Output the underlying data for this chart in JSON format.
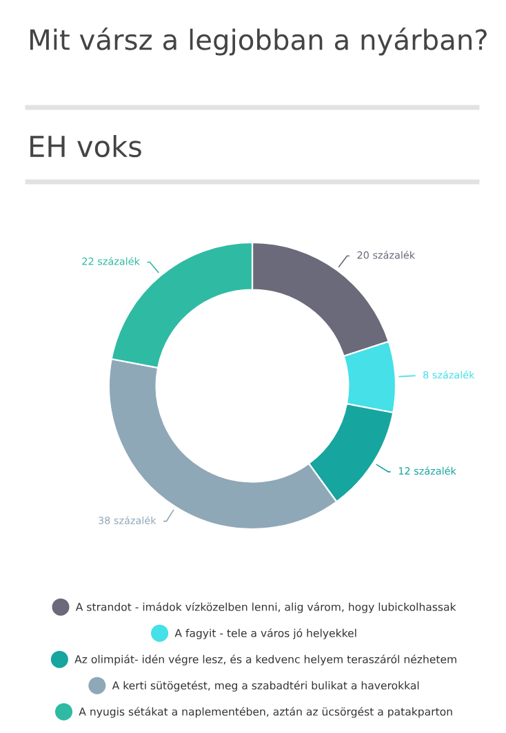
{
  "chart_data": {
    "type": "donut",
    "title": "Mit vársz a legjobban a nyárban?",
    "subtitle": "EH voks",
    "categories": [
      "A strandot - imádok vízközelben lenni, alig várom, hogy lubickolhassak",
      "A fagyit - tele a város jó helyekkel",
      "Az olimpiát- idén végre lesz, és a kedvenc helyem teraszáról nézhetem",
      "A kerti sütögetést, meg a szabadtéri bulikat a haverokkal",
      "A nyugis sétákat a naplementében, aztán az ücsörgést a patakparton"
    ],
    "values": [
      20,
      8,
      12,
      38,
      22
    ],
    "value_labels": [
      "20 százalék",
      "8 százalék",
      "12 százalék",
      "38 százalék",
      "22 százalék"
    ],
    "colors": [
      "#6b6a7a",
      "#45e0e8",
      "#17a59f",
      "#8fa8b8",
      "#2fbaa3"
    ],
    "legend": "bottom"
  }
}
